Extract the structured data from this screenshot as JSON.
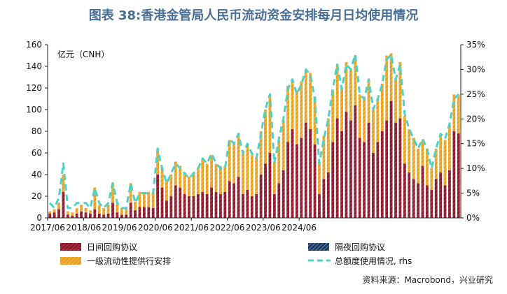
{
  "title": "图表 38:香港金管局人民币流动资金安排每月日均使用情况",
  "source": "资料来源：Macrobond，兴业研究",
  "chart_data": {
    "type": "bar",
    "title": "图表 38:香港金管局人民币流动资金安排每月日均使用情况",
    "unit_label": "亿元（CNH）",
    "x_ticks": [
      "2017/06",
      "2018/06",
      "2019/06",
      "2020/06",
      "2021/06",
      "2022/06",
      "2023/06",
      "2024/06"
    ],
    "x_tick_indices": [
      0,
      8,
      16,
      24,
      32,
      40,
      48,
      56
    ],
    "ylim": [
      0,
      160
    ],
    "y_ticks": [
      0,
      20,
      40,
      60,
      80,
      100,
      120,
      140,
      160
    ],
    "y2lim": [
      0,
      35
    ],
    "y2_ticks": [
      "0%",
      "5%",
      "10%",
      "15%",
      "20%",
      "25%",
      "30%",
      "35%"
    ],
    "colors": {
      "intraday": "#8b1a2b",
      "overnight": "#1f3a5f",
      "term": "#e8a020",
      "ratio": "#4fd1c5"
    },
    "series": [
      {
        "name": "日间回购协议",
        "key": "intraday",
        "type": "bar",
        "values": [
          4,
          5,
          8,
          24,
          3,
          2,
          4,
          6,
          5,
          4,
          8,
          4,
          3,
          4,
          14,
          5,
          3,
          3,
          14,
          7,
          10,
          10,
          10,
          9,
          40,
          28,
          16,
          20,
          30,
          28,
          22,
          20,
          20,
          22,
          24,
          22,
          28,
          24,
          22,
          24,
          34,
          32,
          38,
          22,
          26,
          20,
          22,
          40,
          50,
          60,
          22,
          32,
          44,
          70,
          82,
          68,
          74,
          88,
          82,
          68,
          22,
          36,
          42,
          70,
          92,
          80,
          98,
          90,
          104,
          74,
          70,
          88,
          60,
          70,
          80,
          90,
          108,
          88,
          92,
          50,
          42,
          36,
          32,
          48,
          30,
          26,
          36,
          42,
          30,
          44,
          80,
          78
        ]
      },
      {
        "name": "隔夜回购协议",
        "key": "overnight",
        "type": "bar",
        "values": [
          0,
          0,
          0,
          0,
          0,
          0,
          0,
          0,
          0,
          0,
          0,
          0,
          0,
          0,
          0,
          0,
          0,
          0,
          0,
          0,
          0,
          0,
          0,
          0,
          0,
          0,
          0,
          0,
          0,
          0,
          0,
          0,
          0,
          0,
          0,
          0,
          0,
          0,
          0,
          0,
          0,
          0,
          0,
          0,
          0,
          0,
          0,
          0,
          0,
          0,
          0,
          0,
          0,
          0,
          0,
          0,
          0,
          0,
          0,
          0,
          0,
          0,
          0,
          0,
          0,
          0,
          0,
          0,
          0,
          0,
          0,
          0,
          0,
          0,
          0,
          0,
          0,
          0,
          0,
          0,
          0,
          0,
          0,
          0,
          0,
          0,
          0,
          0,
          0,
          0,
          0,
          0
        ]
      },
      {
        "name": "一级流动性提供行安排",
        "key": "term",
        "type": "bar",
        "values": [
          2,
          3,
          6,
          16,
          3,
          3,
          5,
          6,
          4,
          3,
          20,
          8,
          6,
          8,
          18,
          8,
          6,
          6,
          18,
          8,
          14,
          12,
          14,
          14,
          24,
          18,
          18,
          20,
          22,
          20,
          20,
          18,
          22,
          24,
          30,
          28,
          30,
          26,
          26,
          24,
          38,
          36,
          40,
          40,
          42,
          38,
          34,
          40,
          50,
          52,
          30,
          40,
          46,
          52,
          46,
          50,
          52,
          48,
          52,
          44,
          30,
          40,
          50,
          48,
          50,
          40,
          46,
          48,
          46,
          40,
          42,
          40,
          40,
          40,
          44,
          60,
          44,
          40,
          52,
          44,
          40,
          38,
          32,
          24,
          34,
          20,
          28,
          34,
          42,
          42,
          34,
          36
        ]
      },
      {
        "name": "总额度使用情况, rhs",
        "key": "ratio",
        "type": "line",
        "values": [
          3,
          2,
          4,
          11,
          2,
          2,
          3,
          3,
          3,
          2,
          6,
          3,
          2,
          3,
          7,
          3,
          2,
          2,
          7,
          3,
          5,
          5,
          5,
          5,
          14,
          10,
          7,
          9,
          11,
          10,
          9,
          8,
          9,
          10,
          12,
          11,
          13,
          11,
          10,
          10,
          16,
          15,
          17,
          13,
          15,
          13,
          12,
          17,
          22,
          25,
          11,
          16,
          20,
          26,
          28,
          25,
          27,
          30,
          29,
          24,
          11,
          16,
          20,
          26,
          31,
          26,
          31,
          30,
          33,
          25,
          24,
          28,
          22,
          24,
          27,
          32,
          33,
          28,
          31,
          21,
          18,
          16,
          14,
          16,
          14,
          10,
          14,
          17,
          16,
          19,
          24,
          25
        ]
      }
    ]
  },
  "legend": {
    "intraday": "日间回购协议",
    "overnight": "隔夜回购协议",
    "term": "一级流动性提供行安排",
    "ratio": "总额度使用情况, rhs"
  }
}
